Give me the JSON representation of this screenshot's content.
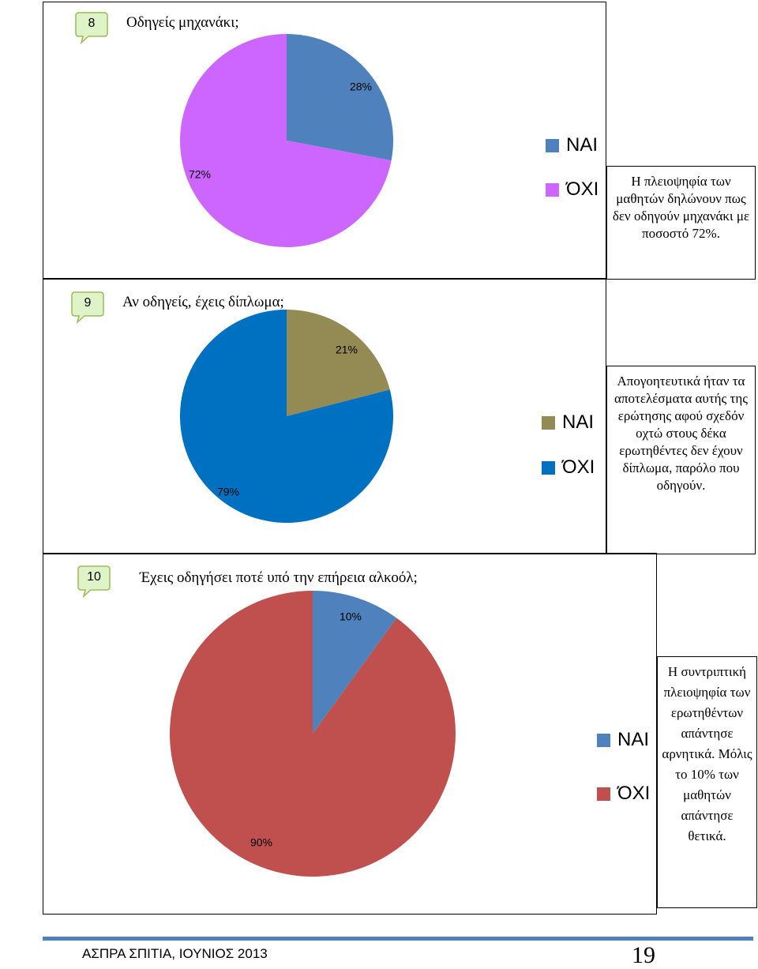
{
  "questions": [
    {
      "number": "8",
      "title": "Οδηγείς μηχανάκι;",
      "note": "Η πλειοψηφία των μαθητών δηλώνουν πως δεν οδηγούν μηχανάκι με ποσοστό 72%.",
      "legend": [
        {
          "label": "ΝΑΙ",
          "color": "#4f81bd"
        },
        {
          "label": "ΌΧΙ",
          "color": "#cc66ff"
        }
      ]
    },
    {
      "number": "9",
      "title": "Αν οδηγείς, έχεις δίπλωμα;",
      "note": "Απογοητευτικά ήταν τα αποτελέσματα αυτής της ερώτησης αφού σχεδόν οχτώ στους δέκα ερωτηθέντες δεν έχουν δίπλωμα, παρόλο που οδηγούν.",
      "legend": [
        {
          "label": "ΝΑΙ",
          "color": "#948a54"
        },
        {
          "label": "ΌΧΙ",
          "color": "#0070c0"
        }
      ]
    },
    {
      "number": "10",
      "title": "Έχεις οδηγήσει ποτέ υπό την επήρεια αλκοόλ;",
      "note": "Η συντριπτική πλειοψηφία των ερωτηθέντων απάντησε αρνητικά. Μόλις το 10% των μαθητών απάντησε θετικά.",
      "legend": [
        {
          "label": "ΝΑΙ",
          "color": "#4f81bd"
        },
        {
          "label": "ΌΧΙ",
          "color": "#c0504d"
        }
      ]
    }
  ],
  "chart_data": [
    {
      "type": "pie",
      "title": "Οδηγείς μηχανάκι;",
      "categories": [
        "ΝΑΙ",
        "ΌΧΙ"
      ],
      "values": [
        28,
        72
      ],
      "labels": [
        "28%",
        "72%"
      ],
      "colors": [
        "#4f81bd",
        "#cc66ff"
      ]
    },
    {
      "type": "pie",
      "title": "Αν οδηγείς, έχεις δίπλωμα;",
      "categories": [
        "ΝΑΙ",
        "ΌΧΙ"
      ],
      "values": [
        21,
        79
      ],
      "labels": [
        "21%",
        "79%"
      ],
      "colors": [
        "#948a54",
        "#0070c0"
      ]
    },
    {
      "type": "pie",
      "title": "Έχεις οδηγήσει ποτέ υπό την επήρεια αλκοόλ;",
      "categories": [
        "ΝΑΙ",
        "ΌΧΙ"
      ],
      "values": [
        10,
        90
      ],
      "labels": [
        "10%",
        "90%"
      ],
      "colors": [
        "#4f81bd",
        "#c0504d"
      ]
    }
  ],
  "footer": {
    "text": "ΑΣΠΡΑ ΣΠΙΤΙΑ, ΙΟΥΝΙΟΣ 2013",
    "page_number": "19"
  }
}
